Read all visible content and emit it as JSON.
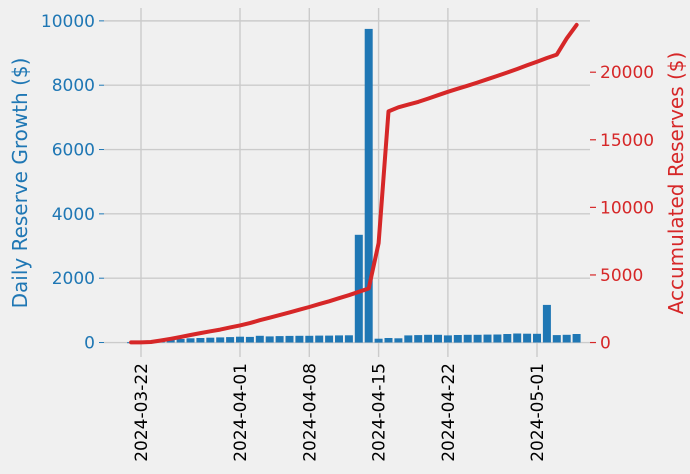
{
  "chart_data": {
    "type": "bar",
    "ylabel_left": "Daily Reserve Growth ($)",
    "ylabel_right": "Accumulated Reserves ($)",
    "colors": {
      "bars": "#1f77b4",
      "line": "#d62728",
      "background": "#f0f0f0",
      "grid": "#cbcbcb"
    },
    "x_start": "2024-03-21",
    "dates": [
      "2024-03-21",
      "2024-03-22",
      "2024-03-23",
      "2024-03-24",
      "2024-03-25",
      "2024-03-26",
      "2024-03-27",
      "2024-03-28",
      "2024-03-29",
      "2024-03-30",
      "2024-03-31",
      "2024-04-01",
      "2024-04-02",
      "2024-04-03",
      "2024-04-04",
      "2024-04-05",
      "2024-04-06",
      "2024-04-07",
      "2024-04-08",
      "2024-04-09",
      "2024-04-10",
      "2024-04-11",
      "2024-04-12",
      "2024-04-13",
      "2024-04-14",
      "2024-04-15",
      "2024-04-16",
      "2024-04-17",
      "2024-04-18",
      "2024-04-19",
      "2024-04-20",
      "2024-04-21",
      "2024-04-22",
      "2024-04-23",
      "2024-04-24",
      "2024-04-25",
      "2024-04-26",
      "2024-04-27",
      "2024-04-28",
      "2024-04-29",
      "2024-04-30",
      "2024-05-01",
      "2024-05-02",
      "2024-05-03",
      "2024-05-04",
      "2024-05-05"
    ],
    "series": [
      {
        "name": "Daily Reserve Growth",
        "kind": "bar",
        "axis": "left",
        "values": [
          10,
          20,
          30,
          60,
          90,
          110,
          130,
          140,
          150,
          160,
          170,
          180,
          175,
          210,
          190,
          200,
          205,
          210,
          210,
          215,
          215,
          220,
          225,
          3350,
          9750,
          120,
          140,
          130,
          220,
          230,
          240,
          240,
          220,
          235,
          240,
          240,
          245,
          250,
          265,
          280,
          275,
          270,
          1170,
          230,
          240,
          265
        ]
      },
      {
        "name": "Accumulated Reserves",
        "kind": "line",
        "axis": "right",
        "values": [
          10,
          10,
          40,
          150,
          280,
          410,
          560,
          700,
          830,
          960,
          1120,
          1270,
          1440,
          1650,
          1840,
          2030,
          2230,
          2430,
          2630,
          2840,
          3050,
          3280,
          3500,
          3750,
          4000,
          7350,
          17100,
          17400,
          17600,
          17800,
          18050,
          18300,
          18550,
          18780,
          19000,
          19240,
          19480,
          19730,
          19980,
          20240,
          20510,
          20780,
          21050,
          21300,
          22500,
          23500
        ]
      }
    ],
    "ylim_left": [
      -450,
      10400
    ],
    "ylim_right": [
      -1070,
      24750
    ],
    "yticks_left": [
      "0",
      "2000",
      "4000",
      "6000",
      "8000",
      "10000"
    ],
    "yticks_right": [
      "0",
      "5000",
      "10000",
      "15000",
      "20000"
    ],
    "xticks": [
      "2024-03-22",
      "2024-04-01",
      "2024-04-08",
      "2024-04-15",
      "2024-04-22",
      "2024-05-01"
    ],
    "grid": true
  }
}
